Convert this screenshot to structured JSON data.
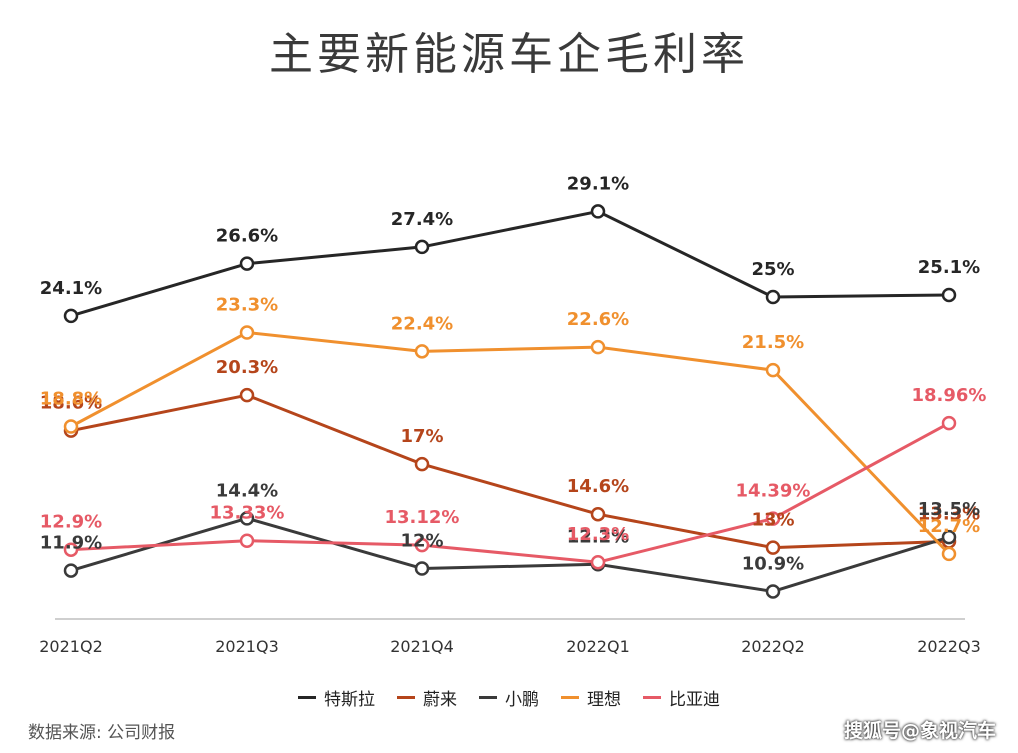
{
  "chart_data": {
    "type": "line",
    "title": "主要新能源车企毛利率",
    "categories": [
      "2021Q2",
      "2021Q3",
      "2021Q4",
      "2022Q1",
      "2022Q2",
      "2022Q3"
    ],
    "series": [
      {
        "name": "特斯拉",
        "color": "#262626",
        "values": [
          24.1,
          26.6,
          27.4,
          29.1,
          25.0,
          25.1
        ],
        "labels": [
          "24.1%",
          "26.6%",
          "27.4%",
          "29.1%",
          "25%",
          "25.1%"
        ]
      },
      {
        "name": "蔚来",
        "color": "#b5451b",
        "values": [
          18.6,
          20.3,
          17.0,
          14.6,
          13.0,
          13.3
        ],
        "labels": [
          "18.6%",
          "20.3%",
          "17%",
          "14.6%",
          "13%",
          "13.3%"
        ]
      },
      {
        "name": "小鹏",
        "color": "#3a3a3a",
        "values": [
          11.9,
          14.4,
          12.0,
          12.2,
          10.9,
          13.5
        ],
        "labels": [
          "11.9%",
          "14.4%",
          "12%",
          "12.2%",
          "10.9%",
          "13.5%"
        ]
      },
      {
        "name": "理想",
        "color": "#f0902e",
        "values": [
          18.8,
          23.3,
          22.4,
          22.6,
          21.5,
          12.7
        ],
        "labels": [
          "18.8%",
          "23.3%",
          "22.4%",
          "22.6%",
          "21.5%",
          "12.7%"
        ]
      },
      {
        "name": "比亚迪",
        "color": "#e65a66",
        "values": [
          12.9,
          13.33,
          13.12,
          12.3,
          14.39,
          18.96
        ],
        "labels": [
          "12.9%",
          "13.33%",
          "13.12%",
          "12.3%",
          "14.39%",
          "18.96%"
        ]
      }
    ],
    "ylim": [
      8,
      33
    ],
    "grid": false,
    "legend_position": "bottom"
  },
  "source_text": "数据来源: 公司财报",
  "watermark_text": "搜狐号@象视汽车"
}
